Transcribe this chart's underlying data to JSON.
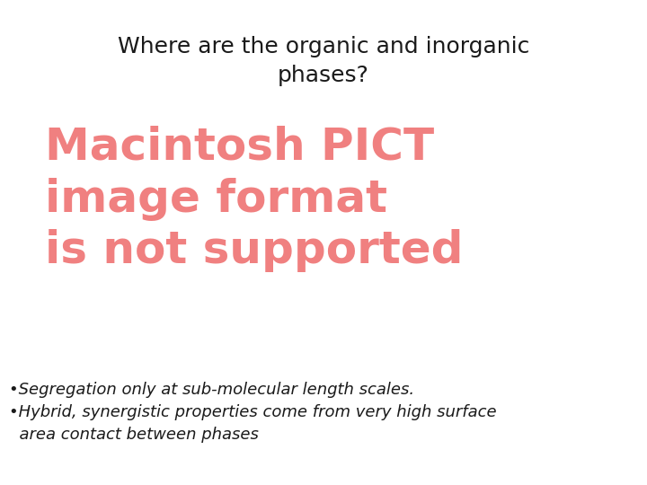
{
  "title_line1": "Where are the organic and inorganic",
  "title_line2": "phases?",
  "title_color": "#1a1a1a",
  "title_fontsize": 18,
  "pict_line1": "Macintosh PICT",
  "pict_line2": "image format",
  "pict_line3": "is not supported",
  "pict_color": "#f08080",
  "pict_fontsize": 36,
  "bullet1": "•Segregation only at sub-molecular length scales.",
  "bullet2": "•Hybrid, synergistic properties come from very high surface",
  "bullet3": "  area contact between phases",
  "bullet_color": "#1a1a1a",
  "bullet_fontsize": 13,
  "background_color": "#ffffff"
}
